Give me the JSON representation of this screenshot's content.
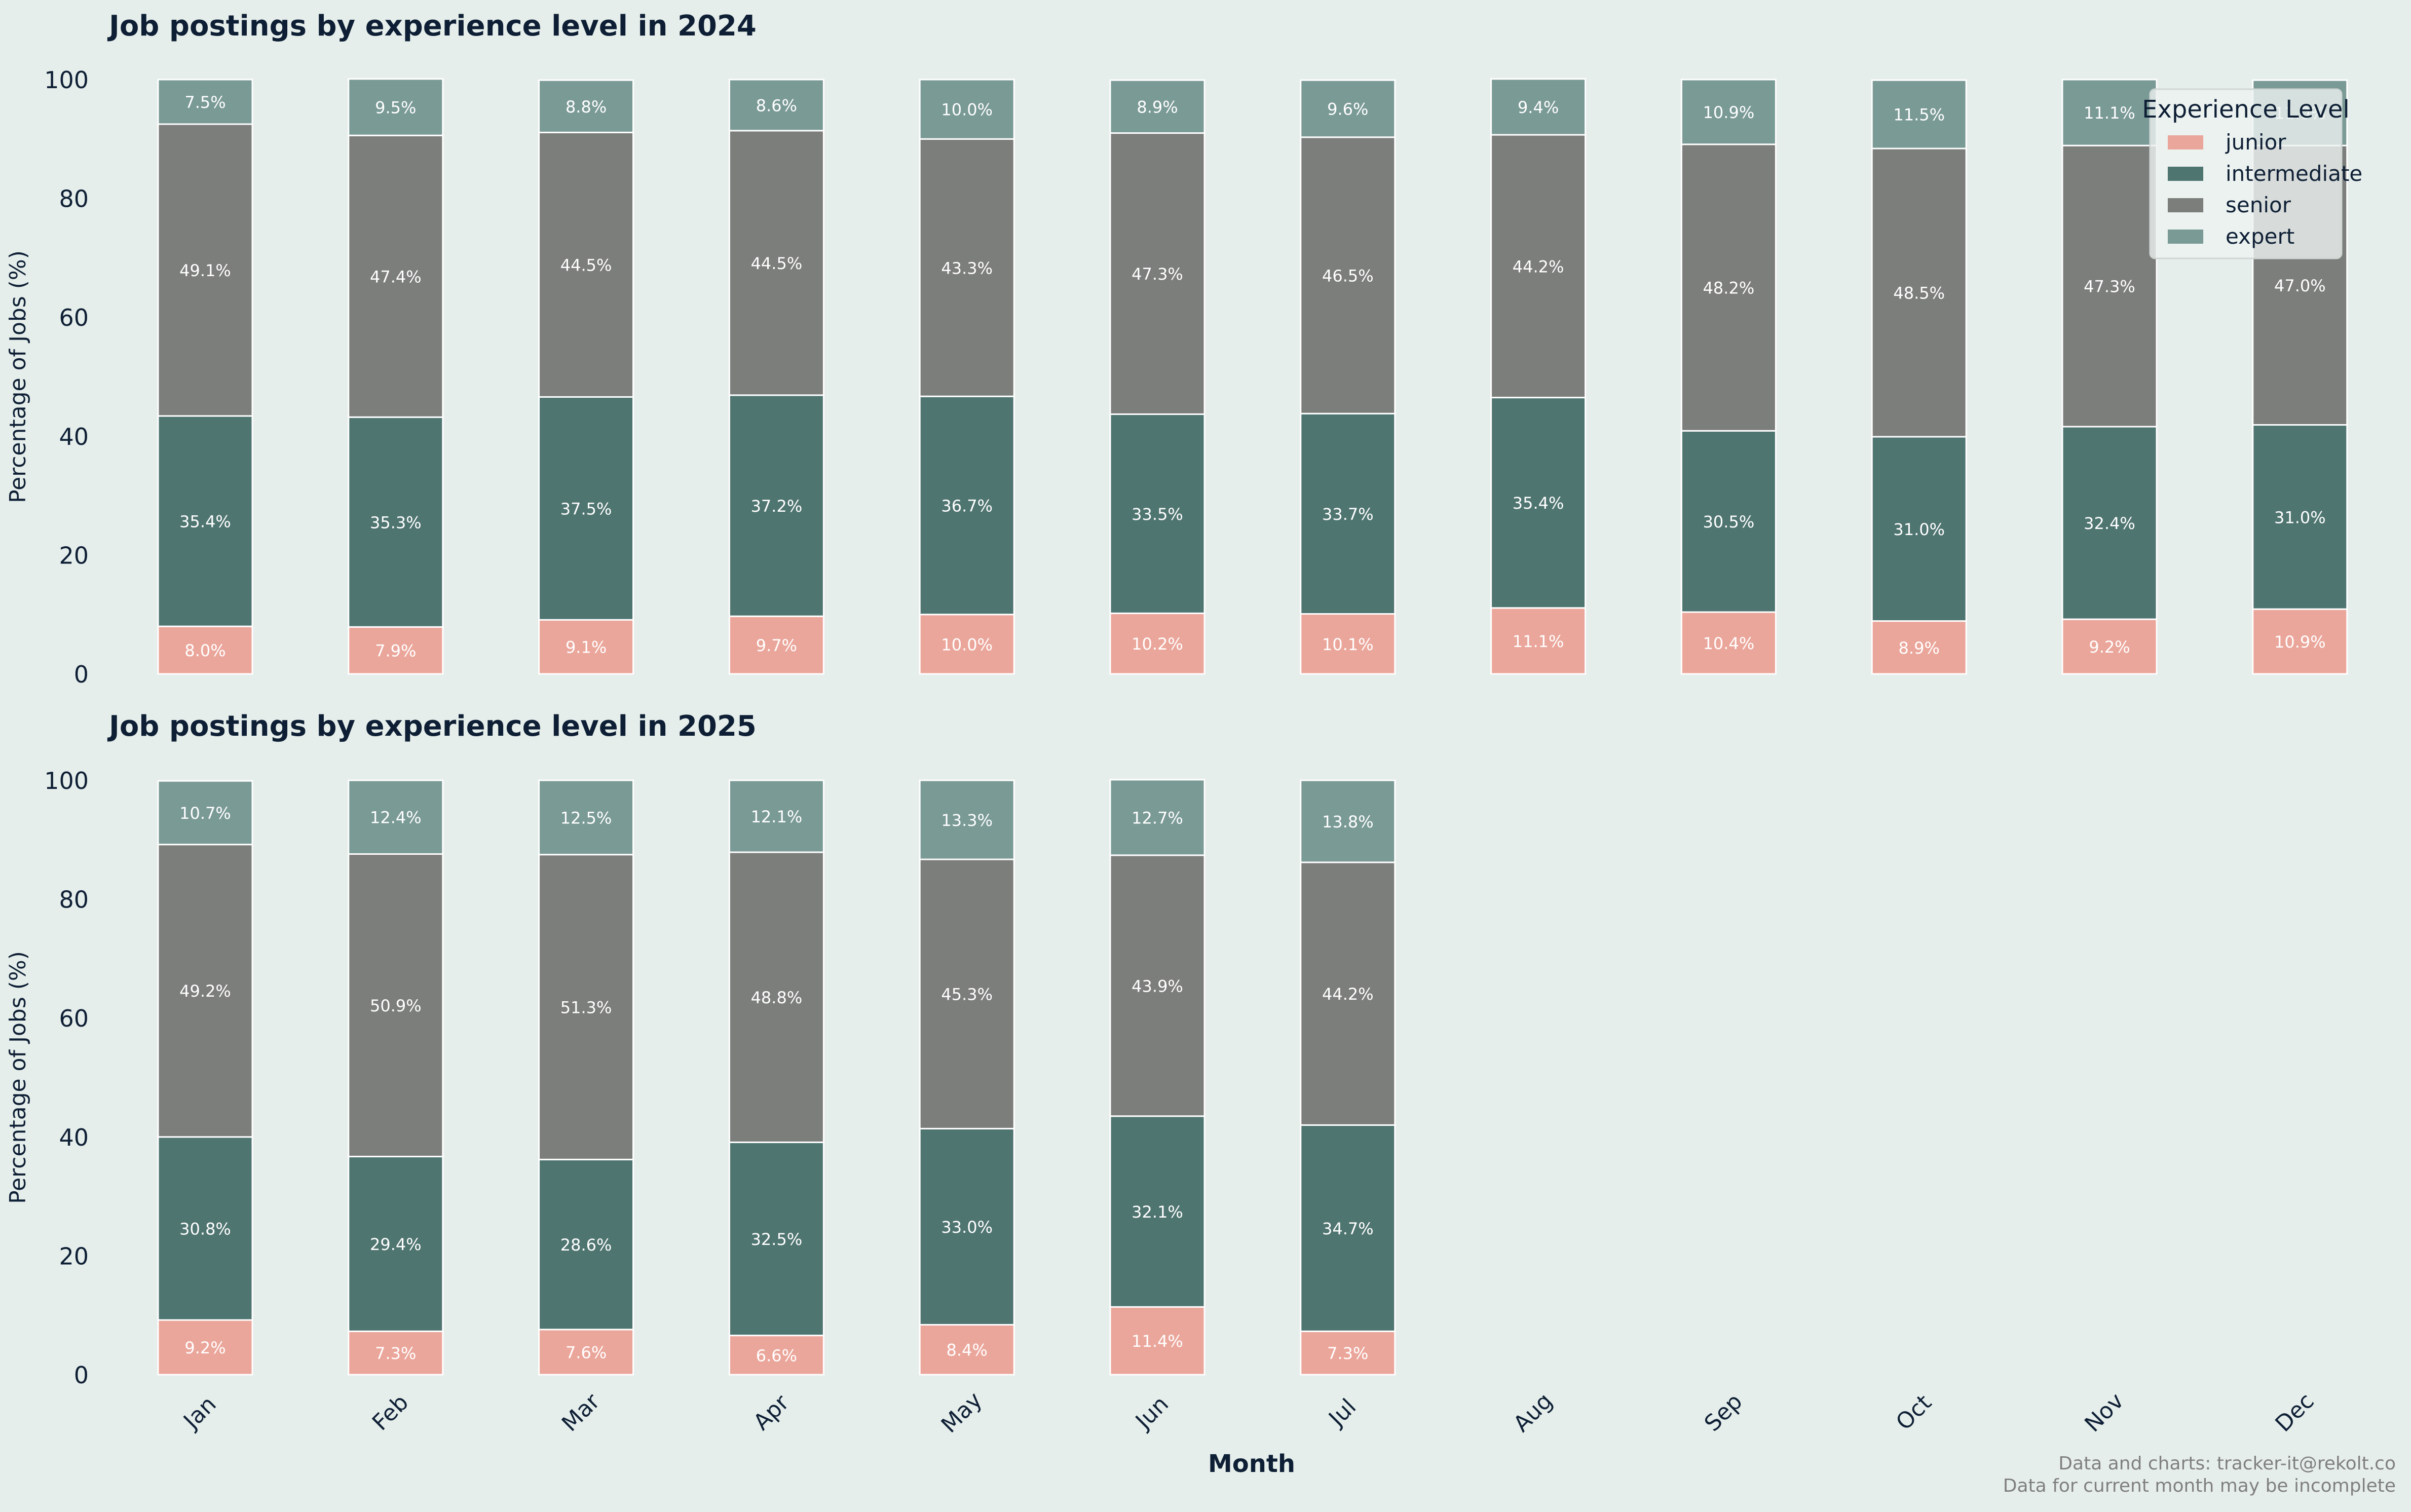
{
  "colors": {
    "background": "#e6eeeb",
    "junior": "#eba69b",
    "intermediate": "#4f7571",
    "senior": "#7c7e7b",
    "expert": "#7a9a96",
    "title_text": "#0e1f35",
    "footer_text": "#7f7f7f"
  },
  "xlabel": "Month",
  "legend": {
    "title": "Experience Level",
    "placement": "top-right"
  },
  "footer": {
    "line1": "Data and charts: tracker-it@rekolt.co",
    "line2": "Data for current month may be incomplete"
  },
  "chart_data": [
    {
      "type": "bar",
      "stacked": true,
      "title": "Job postings by experience level in 2024",
      "xlabel": "",
      "ylabel": "Percentage of Jobs (%)",
      "ylim": [
        0,
        100
      ],
      "yticks": [
        0,
        20,
        40,
        60,
        80,
        100
      ],
      "grid": false,
      "categories": [
        "Jan",
        "Feb",
        "Mar",
        "Apr",
        "May",
        "Jun",
        "Jul",
        "Aug",
        "Sep",
        "Oct",
        "Nov",
        "Dec"
      ],
      "series": [
        {
          "name": "junior",
          "values": [
            8.0,
            7.9,
            9.1,
            9.7,
            10.0,
            10.2,
            10.1,
            11.1,
            10.4,
            8.9,
            9.2,
            10.9
          ]
        },
        {
          "name": "intermediate",
          "values": [
            35.4,
            35.3,
            37.5,
            37.2,
            36.7,
            33.5,
            33.7,
            35.4,
            30.5,
            31.0,
            32.4,
            31.0
          ]
        },
        {
          "name": "senior",
          "values": [
            49.1,
            47.4,
            44.5,
            44.5,
            43.3,
            47.3,
            46.5,
            44.2,
            48.2,
            48.5,
            47.3,
            47.0
          ]
        },
        {
          "name": "expert",
          "values": [
            7.5,
            9.5,
            8.8,
            8.6,
            10.0,
            8.9,
            9.6,
            9.4,
            10.9,
            11.5,
            11.1,
            11.0
          ]
        }
      ],
      "show_xtick_labels": false
    },
    {
      "type": "bar",
      "stacked": true,
      "title": "Job postings by experience level in 2025",
      "xlabel": "Month",
      "ylabel": "Percentage of Jobs (%)",
      "ylim": [
        0,
        100
      ],
      "yticks": [
        0,
        20,
        40,
        60,
        80,
        100
      ],
      "grid": false,
      "categories": [
        "Jan",
        "Feb",
        "Mar",
        "Apr",
        "May",
        "Jun",
        "Jul",
        "Aug",
        "Sep",
        "Oct",
        "Nov",
        "Dec"
      ],
      "series": [
        {
          "name": "junior",
          "values": [
            9.2,
            7.3,
            7.6,
            6.6,
            8.4,
            11.4,
            7.3,
            0,
            0,
            0,
            0,
            0
          ]
        },
        {
          "name": "intermediate",
          "values": [
            30.8,
            29.4,
            28.6,
            32.5,
            33.0,
            32.1,
            34.7,
            0,
            0,
            0,
            0,
            0
          ]
        },
        {
          "name": "senior",
          "values": [
            49.2,
            50.9,
            51.3,
            48.8,
            45.3,
            43.9,
            44.2,
            0,
            0,
            0,
            0,
            0
          ]
        },
        {
          "name": "expert",
          "values": [
            10.7,
            12.4,
            12.5,
            12.1,
            13.3,
            12.7,
            13.8,
            0,
            0,
            0,
            0,
            0
          ]
        }
      ],
      "show_xtick_labels": true
    }
  ]
}
